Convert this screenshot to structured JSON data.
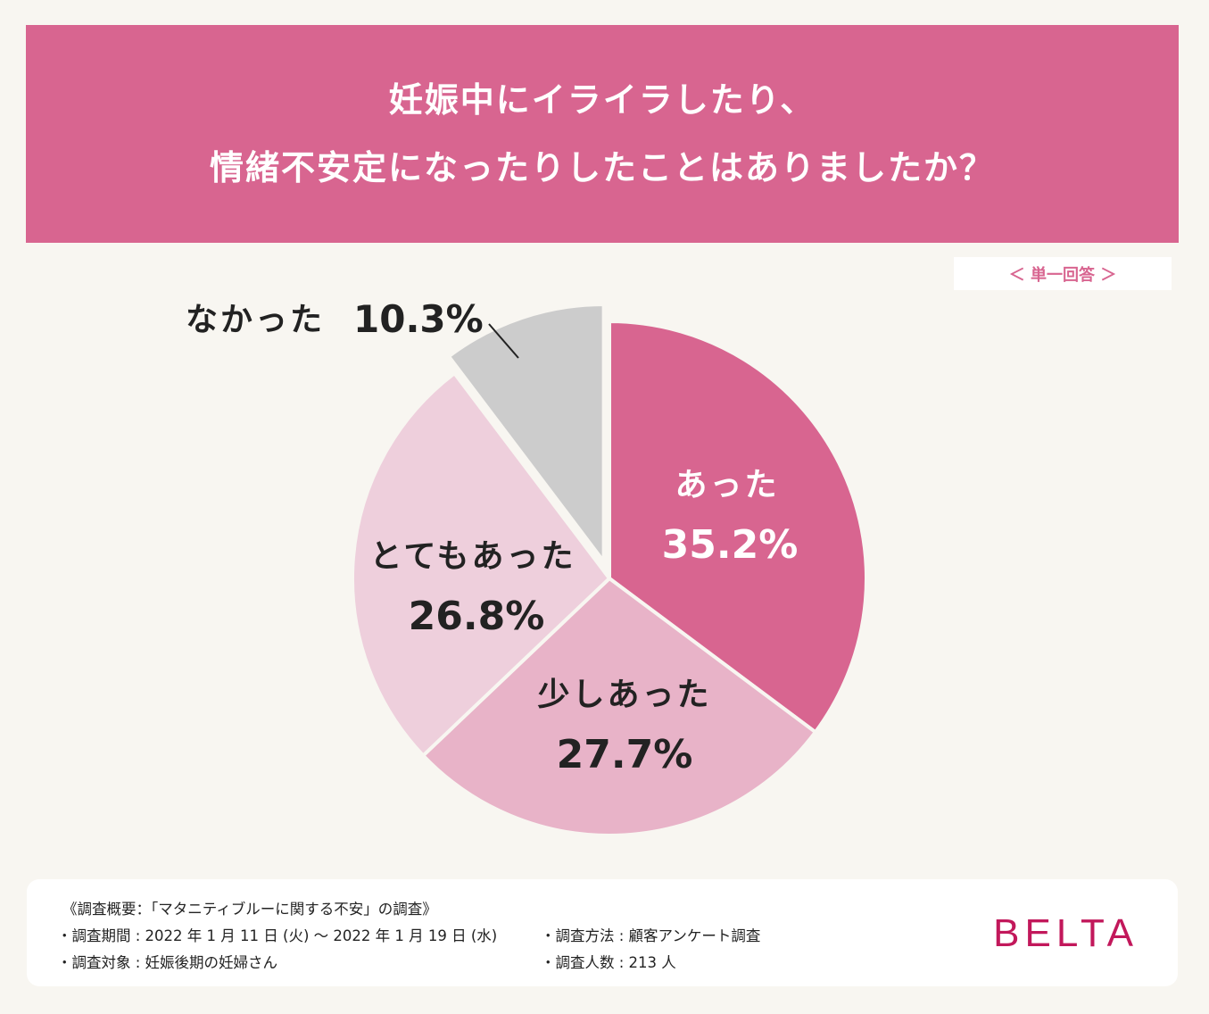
{
  "title": {
    "line1": "妊娠中にイライラしたり、",
    "line2": "情緒不安定になったりしたことはありましたか？"
  },
  "answer_type": "＜ 単一回答 ＞",
  "chart_data": {
    "type": "pie",
    "title": "妊娠中にイライラしたり、情緒不安定になったりしたことはありましたか？",
    "slices": [
      {
        "name": "あった",
        "value": 35.2,
        "label": "35.2%",
        "color": "#d86590",
        "text_color": "#ffffff"
      },
      {
        "name": "少しあった",
        "value": 27.7,
        "label": "27.7%",
        "color": "#e8b3c8",
        "text_color": "#222222"
      },
      {
        "name": "とてもあった",
        "value": 26.8,
        "label": "26.8%",
        "color": "#eecfdc",
        "text_color": "#222222"
      },
      {
        "name": "なかった",
        "value": 10.3,
        "label": "10.3%",
        "color": "#cccccc",
        "text_color": "#222222",
        "exploded": true
      }
    ]
  },
  "footer": {
    "summary": "《調査概要：「マタニティブルーに関する不安」の調査》",
    "period": "・調査期間 : 2022 年 1 月 11 日 (火) 〜 2022 年 1 月 19 日 (水)",
    "target": "・調査対象 : 妊娠後期の妊婦さん",
    "method": "・調査方法 : 顧客アンケート調査",
    "count": "・調査人数 : 213 人",
    "brand": "BELTA"
  }
}
